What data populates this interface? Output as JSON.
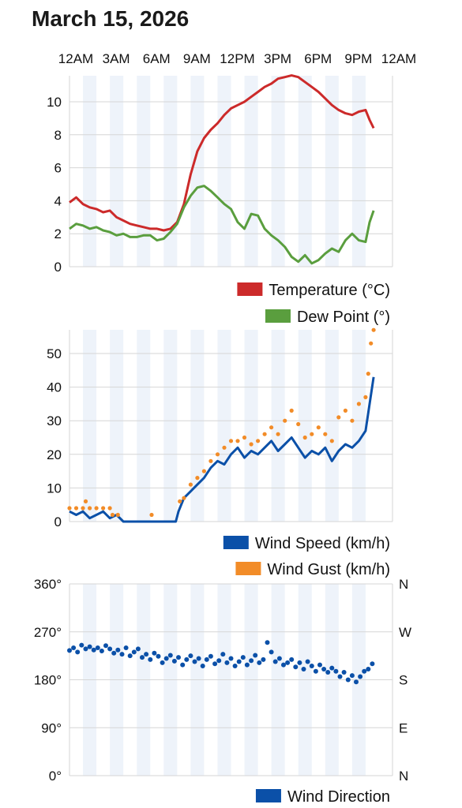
{
  "page": {
    "title": "March 15, 2026"
  },
  "colors": {
    "temperature": "#cc2a2a",
    "dew_point": "#5a9e3e",
    "wind_speed": "#0b50a8",
    "wind_gust": "#f28c28",
    "wind_direction": "#0b50a8",
    "band": "#eef3fa",
    "grid": "#d6d6d6"
  },
  "time_axis": {
    "labels": [
      "12AM",
      "3AM",
      "6AM",
      "9AM",
      "12PM",
      "3PM",
      "6PM",
      "9PM",
      "12AM"
    ],
    "label_hours": [
      0,
      3,
      6,
      9,
      12,
      15,
      18,
      21,
      24
    ],
    "data_end_hour": 22.7
  },
  "chart_data": [
    {
      "type": "line",
      "x_unit": "hour of day",
      "ylim": [
        0,
        11.8
      ],
      "yticks": [
        0,
        2,
        4,
        6,
        8,
        10
      ],
      "legend": "bottom-right",
      "grid": true,
      "series": [
        {
          "name": "Temperature (°C)",
          "x": [
            0,
            0.5,
            1,
            1.5,
            2,
            2.5,
            3,
            3.5,
            4,
            4.5,
            5,
            5.5,
            6,
            6.5,
            7,
            7.5,
            8,
            8.5,
            9,
            9.5,
            10,
            10.5,
            11,
            11.5,
            12,
            12.5,
            13,
            13.5,
            14,
            14.5,
            15,
            15.5,
            16,
            16.5,
            17,
            17.5,
            18,
            18.5,
            19,
            19.5,
            20,
            20.5,
            21,
            21.5,
            22,
            22.3,
            22.6
          ],
          "values": [
            3.9,
            4.2,
            3.8,
            3.6,
            3.5,
            3.3,
            3.4,
            3.0,
            2.8,
            2.6,
            2.5,
            2.4,
            2.3,
            2.3,
            2.2,
            2.3,
            2.7,
            3.8,
            5.6,
            7.0,
            7.8,
            8.3,
            8.7,
            9.2,
            9.6,
            9.8,
            10.0,
            10.3,
            10.6,
            10.9,
            11.1,
            11.4,
            11.5,
            11.6,
            11.5,
            11.2,
            10.9,
            10.6,
            10.2,
            9.8,
            9.5,
            9.3,
            9.2,
            9.4,
            9.5,
            8.9,
            8.4
          ]
        },
        {
          "name": "Dew Point (°)",
          "x": [
            0,
            0.5,
            1,
            1.5,
            2,
            2.5,
            3,
            3.5,
            4,
            4.5,
            5,
            5.5,
            6,
            6.5,
            7,
            7.5,
            8,
            8.5,
            9,
            9.5,
            10,
            10.5,
            11,
            11.5,
            12,
            12.5,
            13,
            13.5,
            14,
            14.5,
            15,
            15.5,
            16,
            16.5,
            17,
            17.5,
            18,
            18.5,
            19,
            19.5,
            20,
            20.5,
            21,
            21.5,
            22,
            22.3,
            22.6
          ],
          "values": [
            2.3,
            2.6,
            2.5,
            2.3,
            2.4,
            2.2,
            2.1,
            1.9,
            2.0,
            1.8,
            1.8,
            1.9,
            1.9,
            1.6,
            1.7,
            2.1,
            2.6,
            3.6,
            4.3,
            4.8,
            4.9,
            4.6,
            4.2,
            3.8,
            3.5,
            2.7,
            2.3,
            3.2,
            3.1,
            2.3,
            1.9,
            1.6,
            1.2,
            0.6,
            0.3,
            0.7,
            0.2,
            0.4,
            0.8,
            1.1,
            0.9,
            1.6,
            2.0,
            1.6,
            1.5,
            2.7,
            3.4
          ]
        }
      ]
    },
    {
      "type": "line",
      "x_unit": "hour of day",
      "ylim": [
        0,
        57
      ],
      "yticks": [
        0,
        10,
        20,
        30,
        40,
        50
      ],
      "legend": "bottom-right",
      "grid": true,
      "series": [
        {
          "name": "Wind Speed (km/h)",
          "x": [
            0,
            0.5,
            1,
            1.5,
            2,
            2.5,
            3,
            3.5,
            4,
            5,
            6,
            7,
            7.9,
            8.1,
            8.5,
            9,
            9.5,
            10,
            10.5,
            11,
            11.5,
            12,
            12.5,
            13,
            13.5,
            14,
            14.5,
            15,
            15.5,
            16,
            16.5,
            17,
            17.5,
            18,
            18.5,
            19,
            19.5,
            20,
            20.5,
            21,
            21.5,
            22,
            22.3,
            22.6
          ],
          "values": [
            3,
            2,
            3,
            1,
            2,
            3,
            1,
            2,
            0,
            0,
            0,
            0,
            0,
            3,
            7,
            9,
            11,
            13,
            16,
            18,
            17,
            20,
            22,
            19,
            21,
            20,
            22,
            24,
            21,
            23,
            25,
            22,
            19,
            21,
            20,
            22,
            18,
            21,
            23,
            22,
            24,
            27,
            35,
            43
          ]
        },
        {
          "name": "Wind Gust (km/h)",
          "x": [
            0,
            0.5,
            1,
            1.2,
            1.5,
            2,
            2.5,
            3,
            3.2,
            3.6,
            6.1,
            8.2,
            8.5,
            9,
            9.5,
            10,
            10.5,
            11,
            11.5,
            12,
            12.5,
            13,
            13.5,
            14,
            14.5,
            15,
            15.5,
            16,
            16.5,
            17,
            17.5,
            18,
            18.5,
            19,
            19.5,
            20,
            20.5,
            21,
            21.5,
            22,
            22.2,
            22.4,
            22.6
          ],
          "values": [
            4,
            4,
            4,
            6,
            4,
            4,
            4,
            4,
            2,
            2,
            2,
            6,
            7,
            11,
            13,
            15,
            18,
            20,
            22,
            24,
            24,
            25,
            23,
            24,
            26,
            28,
            26,
            30,
            33,
            29,
            25,
            26,
            28,
            26,
            24,
            31,
            33,
            30,
            35,
            37,
            44,
            53,
            57
          ]
        }
      ]
    },
    {
      "type": "scatter",
      "x_unit": "hour of day",
      "ylim": [
        0,
        360
      ],
      "yticks": [
        0,
        90,
        180,
        270,
        360
      ],
      "ytick_labels": [
        "0°",
        "90°",
        "180°",
        "270°",
        "360°"
      ],
      "right_ticks": [
        0,
        90,
        180,
        270,
        360
      ],
      "right_tick_labels": [
        "N",
        "E",
        "S",
        "W",
        "N"
      ],
      "legend": "bottom-right",
      "grid": true,
      "series": [
        {
          "name": "Wind Direction",
          "x": [
            0,
            0.3,
            0.6,
            0.9,
            1.2,
            1.5,
            1.8,
            2.1,
            2.4,
            2.7,
            3.0,
            3.3,
            3.6,
            3.9,
            4.2,
            4.5,
            4.8,
            5.1,
            5.4,
            5.7,
            6.0,
            6.3,
            6.6,
            6.9,
            7.2,
            7.5,
            7.8,
            8.1,
            8.4,
            8.7,
            9.0,
            9.3,
            9.6,
            9.9,
            10.2,
            10.5,
            10.8,
            11.1,
            11.4,
            11.7,
            12.0,
            12.3,
            12.6,
            12.9,
            13.2,
            13.5,
            13.8,
            14.1,
            14.4,
            14.7,
            15.0,
            15.3,
            15.6,
            15.9,
            16.2,
            16.5,
            16.8,
            17.1,
            17.4,
            17.7,
            18.0,
            18.3,
            18.6,
            18.9,
            19.2,
            19.5,
            19.8,
            20.1,
            20.4,
            20.7,
            21.0,
            21.3,
            21.6,
            21.9,
            22.2,
            22.5
          ],
          "values": [
            235,
            240,
            232,
            245,
            238,
            242,
            236,
            240,
            234,
            244,
            238,
            230,
            236,
            228,
            240,
            225,
            232,
            238,
            222,
            228,
            218,
            230,
            224,
            212,
            220,
            226,
            215,
            222,
            208,
            218,
            225,
            214,
            220,
            206,
            218,
            224,
            210,
            216,
            228,
            212,
            220,
            206,
            214,
            222,
            208,
            216,
            226,
            212,
            218,
            250,
            232,
            214,
            220,
            208,
            212,
            218,
            204,
            212,
            200,
            214,
            206,
            196,
            208,
            200,
            194,
            202,
            196,
            186,
            194,
            180,
            188,
            176,
            186,
            196,
            200,
            210
          ]
        }
      ]
    }
  ],
  "legend_panels": [
    {
      "label": "Temperature (°C)",
      "color_key": "temperature"
    },
    {
      "label": "Dew Point (°)",
      "color_key": "dew_point"
    },
    {
      "label": "Wind Speed (km/h)",
      "color_key": "wind_speed"
    },
    {
      "label": "Wind Gust (km/h)",
      "color_key": "wind_gust"
    },
    {
      "label": "Wind Direction",
      "color_key": "wind_direction"
    }
  ]
}
